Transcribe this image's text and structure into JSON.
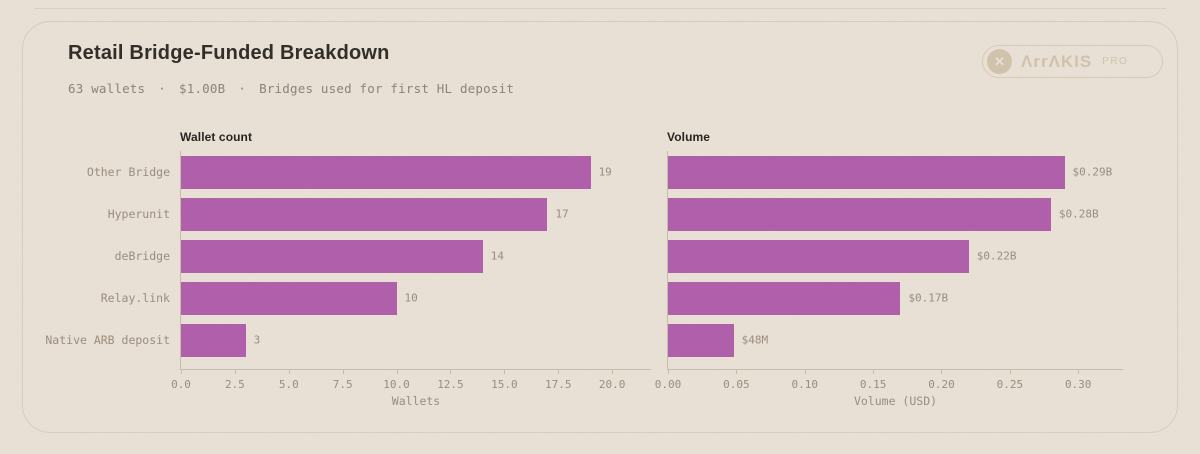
{
  "page": {
    "title": "Retail Bridge-Funded Breakdown",
    "subtitle": {
      "wallets": "63 wallets",
      "volume": "$1.00B",
      "description": "Bridges used for first HL deposit",
      "separator": "·"
    }
  },
  "brand": {
    "name": "Arrakis",
    "wordmark": "ΛrrΛKIS",
    "suffix": "PRO",
    "icon": "x-circle-icon",
    "icon_glyph": "✕"
  },
  "colors": {
    "background": "#eae2d7",
    "bar": "#b05dab",
    "axis": "#c9bcab",
    "card_border": "#d9cdbe",
    "muted_text": "#9a8b7c",
    "title_text": "#2d2924",
    "logo": "#d2c3ac"
  },
  "chart_data": [
    {
      "type": "bar",
      "orientation": "horizontal",
      "title": "Wallet count",
      "categories": [
        "Other Bridge",
        "Hyperunit",
        "deBridge",
        "Relay.link",
        "Native ARB deposit"
      ],
      "values": [
        19,
        17,
        14,
        10,
        3
      ],
      "value_labels": [
        "19",
        "17",
        "14",
        "10",
        "3"
      ],
      "xlabel": "Wallets",
      "xlim": [
        0,
        21.85
      ],
      "xtick_values": [
        0,
        2.5,
        5,
        7.5,
        10,
        12.5,
        15,
        17.5,
        20
      ],
      "xticks": [
        "0.0",
        "2.5",
        "5.0",
        "7.5",
        "10.0",
        "12.5",
        "15.0",
        "17.5",
        "20.0"
      ],
      "grid": false,
      "legend": false,
      "show_category_labels": true
    },
    {
      "type": "bar",
      "orientation": "horizontal",
      "title": "Volume",
      "categories": [
        "Other Bridge",
        "Hyperunit",
        "deBridge",
        "Relay.link",
        "Native ARB deposit"
      ],
      "values": [
        0.29,
        0.28,
        0.22,
        0.17,
        0.048
      ],
      "value_labels": [
        "$0.29B",
        "$0.28B",
        "$0.22B",
        "$0.17B",
        "$48M"
      ],
      "xlabel": "Volume (USD)",
      "xlim": [
        0,
        0.3335
      ],
      "xtick_values": [
        0,
        0.05,
        0.1,
        0.15,
        0.2,
        0.25,
        0.3
      ],
      "xticks": [
        "0.00",
        "0.05",
        "0.10",
        "0.15",
        "0.20",
        "0.25",
        "0.30"
      ],
      "grid": false,
      "legend": false,
      "show_category_labels": false
    }
  ]
}
